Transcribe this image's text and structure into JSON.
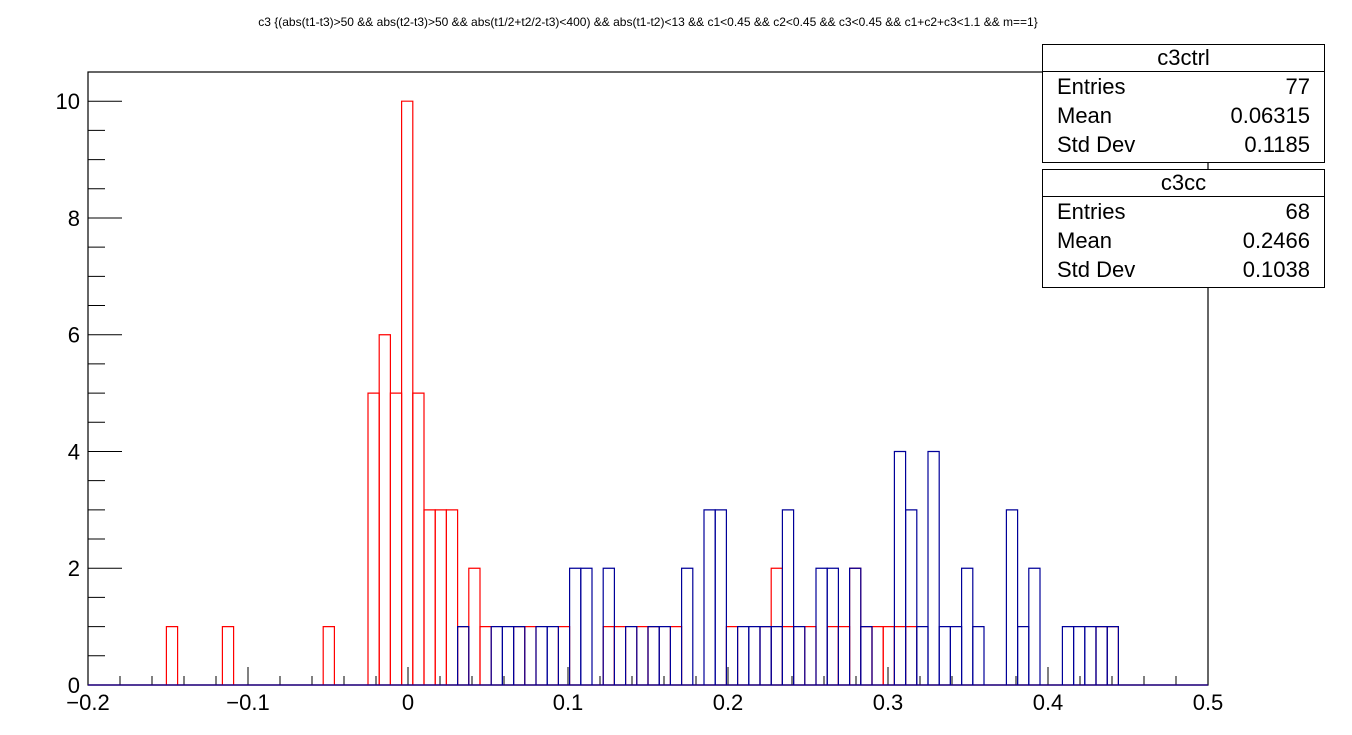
{
  "title": "c3 {(abs(t1-t3)>50 && abs(t2-t3)>50 && abs(t1/2+t2/2-t3)<400) && abs(t1-t2)<13 && c1<0.45 && c2<0.45 && c3<0.45 && c1+c2+c3<1.1 && m==1}",
  "stats": [
    {
      "name": "c3ctrl",
      "entries_label": "Entries",
      "entries": "77",
      "mean_label": "Mean",
      "mean": "0.06315",
      "std_label": "Std Dev",
      "std": "0.1185"
    },
    {
      "name": "c3cc",
      "entries_label": "Entries",
      "entries": "68",
      "mean_label": "Mean",
      "mean": "0.2466",
      "std_label": "Std Dev",
      "std": "0.1038"
    }
  ],
  "chart_data": {
    "type": "histogram",
    "xlim": [
      -0.2,
      0.5
    ],
    "ylim": [
      0,
      10.5
    ],
    "bin_width": 0.007,
    "x_ticks": [
      "−0.2",
      "−0.1",
      "0",
      "0.1",
      "0.2",
      "0.3",
      "0.4",
      "0.5"
    ],
    "x_tick_values": [
      -0.2,
      -0.1,
      0,
      0.1,
      0.2,
      0.3,
      0.4,
      0.5
    ],
    "y_ticks": [
      "0",
      "2",
      "4",
      "6",
      "8",
      "10"
    ],
    "y_tick_values": [
      0,
      2,
      4,
      6,
      8,
      10
    ],
    "series": [
      {
        "name": "c3ctrl",
        "color": "#ff0000",
        "bins": [
          [
            -0.151,
            1
          ],
          [
            -0.116,
            1
          ],
          [
            -0.053,
            1
          ],
          [
            -0.025,
            5
          ],
          [
            -0.018,
            6
          ],
          [
            -0.011,
            5
          ],
          [
            -0.004,
            10
          ],
          [
            0.003,
            5
          ],
          [
            0.01,
            3
          ],
          [
            0.017,
            3
          ],
          [
            0.024,
            3
          ],
          [
            0.031,
            1
          ],
          [
            0.038,
            2
          ],
          [
            0.045,
            1
          ],
          [
            0.066,
            1
          ],
          [
            0.073,
            1
          ],
          [
            0.094,
            1
          ],
          [
            0.122,
            1
          ],
          [
            0.129,
            1
          ],
          [
            0.143,
            1
          ],
          [
            0.15,
            1
          ],
          [
            0.164,
            1
          ],
          [
            0.199,
            1
          ],
          [
            0.22,
            1
          ],
          [
            0.227,
            2
          ],
          [
            0.234,
            1
          ],
          [
            0.248,
            1
          ],
          [
            0.262,
            1
          ],
          [
            0.269,
            1
          ],
          [
            0.276,
            2
          ],
          [
            0.283,
            1
          ],
          [
            0.29,
            1
          ],
          [
            0.297,
            1
          ],
          [
            0.304,
            1
          ],
          [
            0.311,
            1
          ],
          [
            0.43,
            1
          ],
          [
            0.437,
            1
          ]
        ]
      },
      {
        "name": "c3cc",
        "color": "#000099",
        "bins": [
          [
            0.031,
            1
          ],
          [
            0.052,
            1
          ],
          [
            0.059,
            1
          ],
          [
            0.066,
            1
          ],
          [
            0.08,
            1
          ],
          [
            0.087,
            1
          ],
          [
            0.101,
            2
          ],
          [
            0.108,
            2
          ],
          [
            0.122,
            2
          ],
          [
            0.136,
            1
          ],
          [
            0.15,
            1
          ],
          [
            0.157,
            1
          ],
          [
            0.171,
            2
          ],
          [
            0.185,
            3
          ],
          [
            0.192,
            3
          ],
          [
            0.206,
            1
          ],
          [
            0.213,
            1
          ],
          [
            0.22,
            1
          ],
          [
            0.227,
            1
          ],
          [
            0.234,
            3
          ],
          [
            0.241,
            1
          ],
          [
            0.255,
            2
          ],
          [
            0.262,
            2
          ],
          [
            0.276,
            2
          ],
          [
            0.283,
            1
          ],
          [
            0.304,
            4
          ],
          [
            0.311,
            3
          ],
          [
            0.318,
            1
          ],
          [
            0.325,
            4
          ],
          [
            0.332,
            1
          ],
          [
            0.339,
            1
          ],
          [
            0.346,
            2
          ],
          [
            0.353,
            1
          ],
          [
            0.374,
            3
          ],
          [
            0.381,
            1
          ],
          [
            0.388,
            2
          ],
          [
            0.409,
            1
          ],
          [
            0.416,
            1
          ],
          [
            0.423,
            1
          ],
          [
            0.43,
            1
          ],
          [
            0.437,
            1
          ]
        ]
      }
    ]
  }
}
